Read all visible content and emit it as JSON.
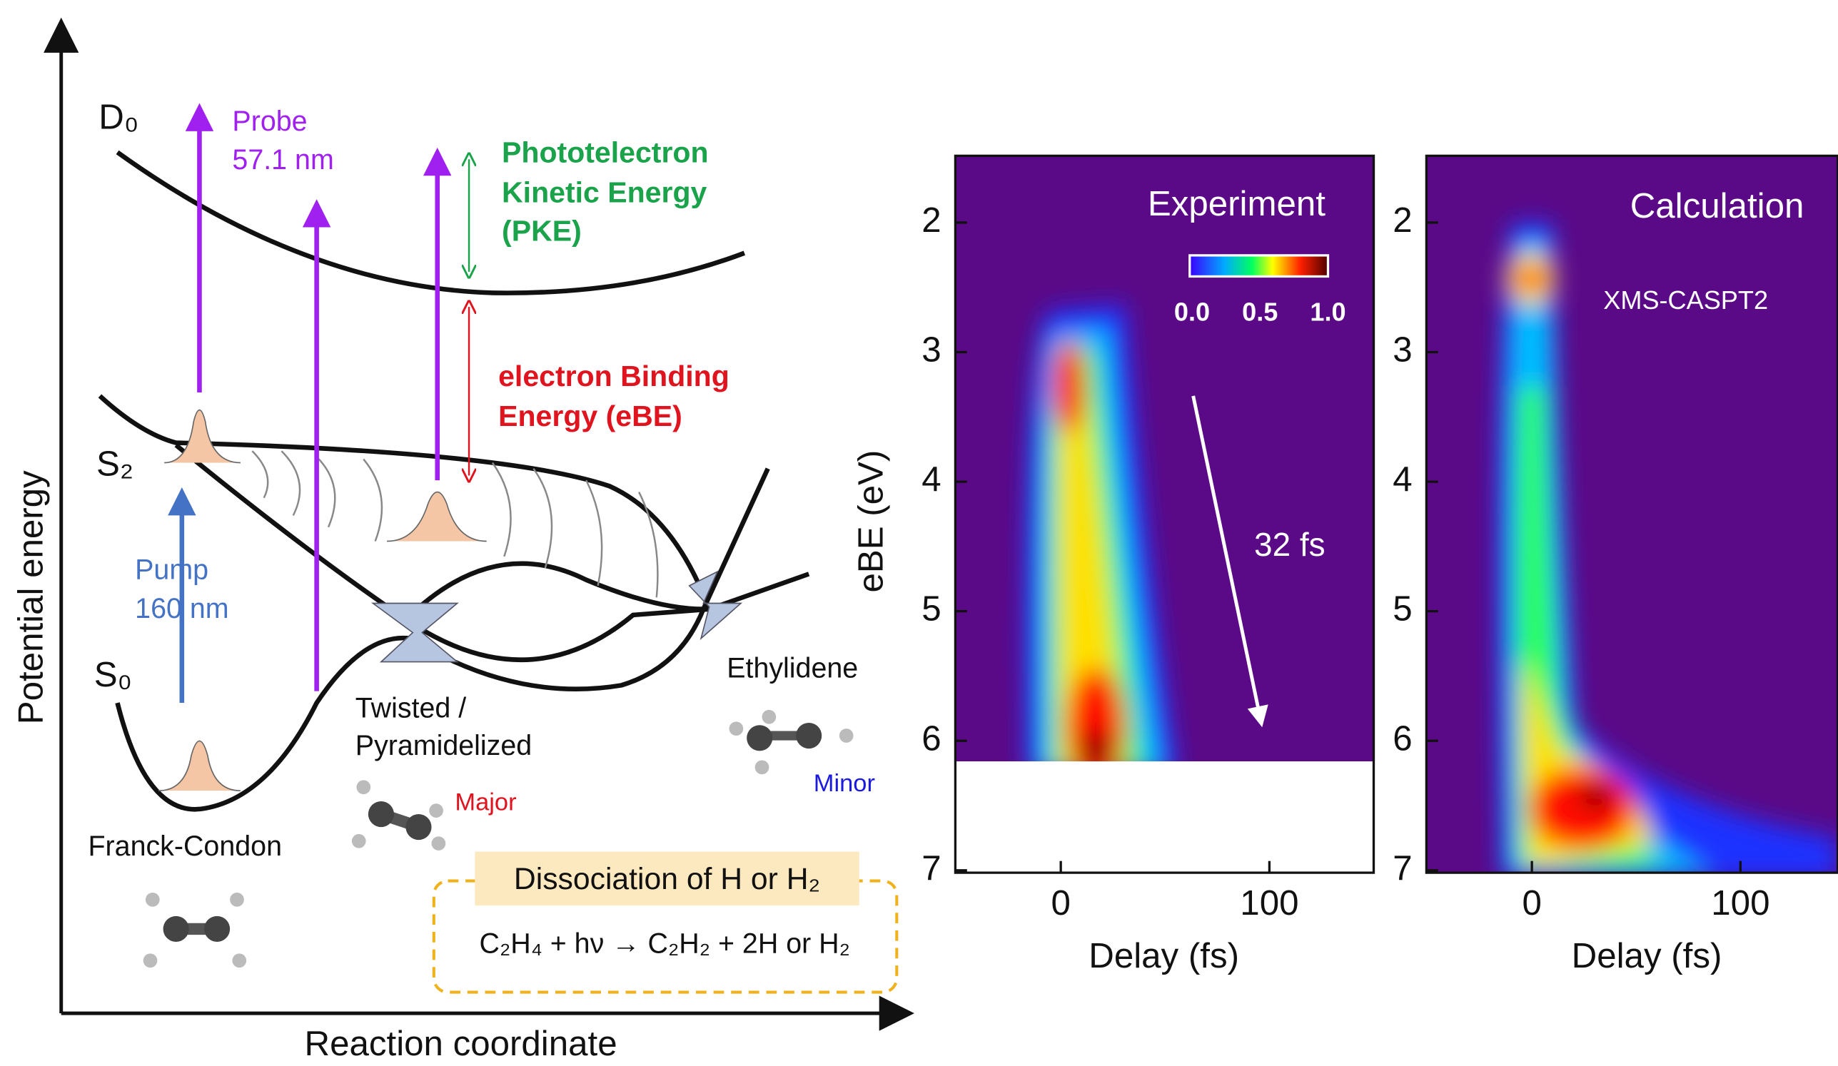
{
  "diagram": {
    "axis_y_label": "Potential energy",
    "axis_x_label": "Reaction coordinate",
    "states": {
      "d0": "D₀",
      "s2": "S₂",
      "s0": "S₀"
    },
    "probe": [
      "Probe",
      "57.1 nm"
    ],
    "pump": [
      "Pump",
      "160 nm"
    ],
    "pke": [
      "Phototelectron",
      "Kinetic Energy",
      "(PKE)"
    ],
    "ebe": [
      "electron Binding",
      "Energy (eBE)"
    ],
    "geometries": {
      "twisted": [
        "Twisted /",
        "Pyramidelized"
      ],
      "ethylidene": "Ethylidene",
      "franck_condon": "Franck-Condon",
      "major": "Major",
      "minor": "Minor"
    },
    "dissociation": {
      "title": "Dissociation of H or H₂",
      "equation": "C₂H₄ + hν → C₂H₂ + 2H or H₂"
    }
  },
  "panels": [
    {
      "title": "Experiment",
      "y_label": "eBE (eV)",
      "x_label": "Delay (fs)",
      "yticks": [
        "2",
        "3",
        "4",
        "5",
        "6",
        "7"
      ],
      "xticks": [
        "0",
        "100"
      ],
      "annotation": "32 fs",
      "colorbar_ticks": [
        "0.0",
        "0.5",
        "1.0"
      ]
    },
    {
      "title": "Calculation",
      "x_label": "Delay (fs)",
      "yticks": [
        "2",
        "3",
        "4",
        "5",
        "6",
        "7"
      ],
      "xticks": [
        "0",
        "100"
      ],
      "method": "XMS-CASPT2"
    }
  ]
}
